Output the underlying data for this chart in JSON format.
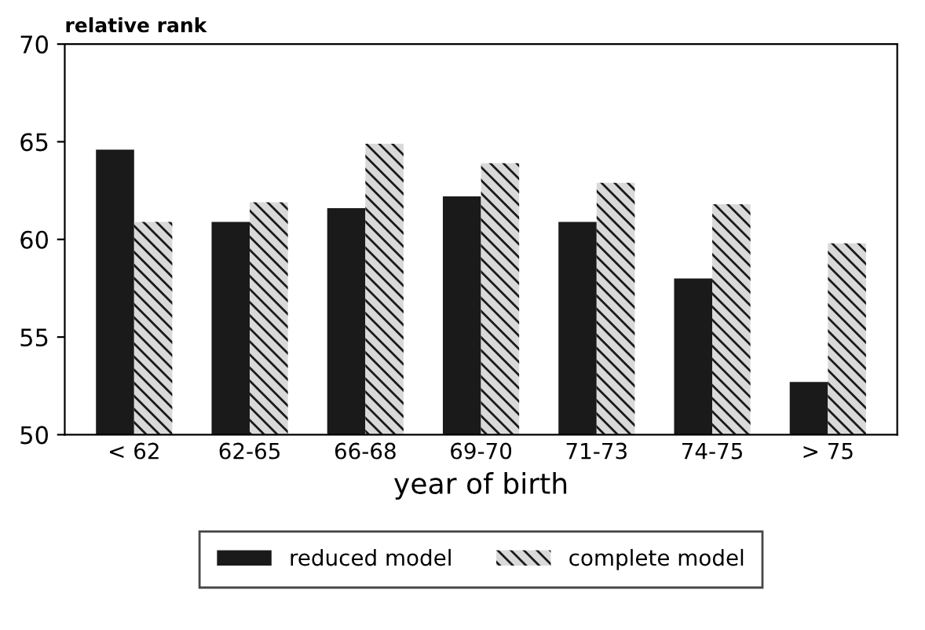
{
  "chart_data": {
    "type": "bar",
    "ylabel": "relative rank",
    "xlabel": "year of birth",
    "categories": [
      "< 62",
      "62-65",
      "66-68",
      "69-70",
      "71-73",
      "74-75",
      "> 75"
    ],
    "series": [
      {
        "name": "reduced model",
        "color": "#1a1a1a",
        "values": [
          64.6,
          60.9,
          61.6,
          62.2,
          60.9,
          58.0,
          52.7
        ]
      },
      {
        "name": "complete model",
        "color": "#d9d9d9",
        "values": [
          60.9,
          61.9,
          64.9,
          63.9,
          62.9,
          61.8,
          59.8
        ]
      }
    ],
    "ylim": [
      50,
      70
    ],
    "yticks": [
      50,
      55,
      60,
      65,
      70
    ],
    "grid": false,
    "legend": "bottom"
  }
}
